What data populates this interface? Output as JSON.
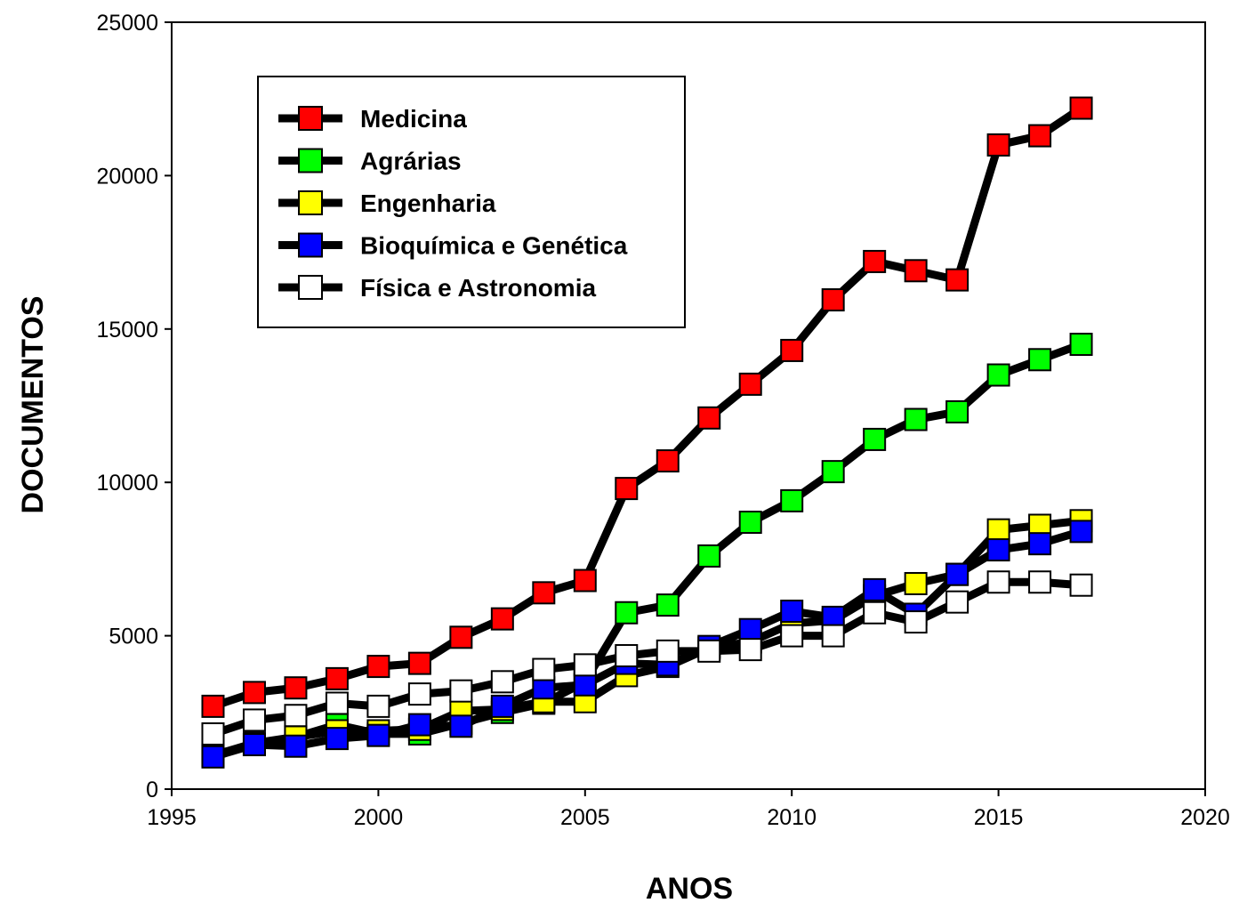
{
  "chart_data": {
    "type": "line",
    "title": "",
    "xlabel": "ANOS",
    "ylabel": "DOCUMENTOS",
    "xlim": [
      1995,
      2020
    ],
    "ylim": [
      0,
      25000
    ],
    "xticks": [
      "1995",
      "2000",
      "2005",
      "2010",
      "2015",
      "2020"
    ],
    "yticks": [
      "0",
      "5000",
      "10000",
      "15000",
      "20000",
      "25000"
    ],
    "grid": false,
    "legend_position": "top-left",
    "x": [
      1996,
      1997,
      1998,
      1999,
      2000,
      2001,
      2002,
      2003,
      2004,
      2005,
      2006,
      2007,
      2008,
      2009,
      2010,
      2011,
      2012,
      2013,
      2014,
      2015,
      2016,
      2017
    ],
    "series": [
      {
        "name": "Medicina",
        "color": "#ff0000",
        "values": [
          2700,
          3150,
          3300,
          3600,
          4000,
          4100,
          4950,
          5550,
          6400,
          6800,
          9800,
          10700,
          12100,
          13200,
          14300,
          15950,
          17200,
          16900,
          16600,
          21000,
          21300,
          22200
        ]
      },
      {
        "name": "Agrárias",
        "color": "#00ff00",
        "values": [
          1100,
          1500,
          1700,
          2100,
          1800,
          1800,
          2150,
          2500,
          2800,
          3500,
          5750,
          6000,
          7600,
          8700,
          9400,
          10350,
          11400,
          12050,
          12300,
          13500,
          14000,
          14500
        ]
      },
      {
        "name": "Engenharia",
        "color": "#ffff00",
        "values": [
          1100,
          1450,
          1700,
          1900,
          1900,
          1950,
          2550,
          2600,
          2850,
          2850,
          3700,
          4000,
          4600,
          4800,
          5400,
          5500,
          6300,
          6700,
          7000,
          8450,
          8600,
          8750
        ]
      },
      {
        "name": "Bioquímica e Genética",
        "color": "#0000ff",
        "values": [
          1050,
          1450,
          1400,
          1650,
          1750,
          2100,
          2050,
          2700,
          3300,
          3400,
          4100,
          4050,
          4650,
          5200,
          5800,
          5600,
          6500,
          5700,
          7000,
          7800,
          8000,
          8400
        ]
      },
      {
        "name": "Física e Astronomia",
        "color": "#ffffff",
        "values": [
          1800,
          2250,
          2400,
          2800,
          2700,
          3100,
          3200,
          3500,
          3900,
          4050,
          4350,
          4500,
          4500,
          4550,
          5000,
          5000,
          5750,
          5450,
          6100,
          6750,
          6750,
          6650
        ]
      }
    ]
  }
}
